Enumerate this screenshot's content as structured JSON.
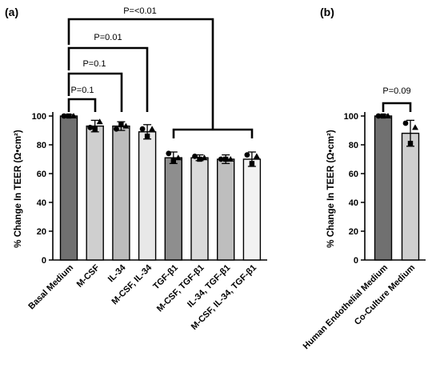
{
  "chart_data": [
    {
      "type": "bar",
      "panel_label": "(a)",
      "ylabel": "% Change In TEER (Ω•cm²)",
      "ylim": [
        0,
        100
      ],
      "yticks": [
        "0",
        "20",
        "40",
        "60",
        "80",
        "100"
      ],
      "categories": [
        "Basal Medium",
        "M-CSF",
        "IL-34",
        "M-CSF, IL-34",
        "TGF-β1",
        "M-CSF, TGF-β1",
        "IL-34, TGF-β1",
        "M-CSF, IL-34, TGF-β1"
      ],
      "values": [
        100,
        93,
        93,
        89,
        71,
        71,
        70,
        70
      ],
      "errors": [
        1,
        4,
        3,
        5,
        4,
        2,
        3,
        5
      ],
      "bar_colors": [
        "#707070",
        "#cfcfcf",
        "#bcbcbc",
        "#e8e8e8",
        "#8e8e8e",
        "#dadada",
        "#bebebe",
        "#f2f2f2"
      ],
      "points": [
        [
          {
            "y": 100,
            "m": "circle"
          },
          {
            "y": 100,
            "m": "square"
          },
          {
            "y": 100,
            "m": "triangle"
          }
        ],
        [
          {
            "y": 92,
            "m": "circle"
          },
          {
            "y": 91,
            "m": "square"
          },
          {
            "y": 96,
            "m": "triangle"
          }
        ],
        [
          {
            "y": 91,
            "m": "circle"
          },
          {
            "y": 94,
            "m": "square"
          },
          {
            "y": 93,
            "m": "triangle"
          }
        ],
        [
          {
            "y": 91,
            "m": "circle"
          },
          {
            "y": 86,
            "m": "square"
          },
          {
            "y": 91,
            "m": "triangle"
          }
        ],
        [
          {
            "y": 74,
            "m": "circle"
          },
          {
            "y": 69,
            "m": "square"
          },
          {
            "y": 71,
            "m": "triangle"
          }
        ],
        [
          {
            "y": 72,
            "m": "circle"
          },
          {
            "y": 70,
            "m": "square"
          },
          {
            "y": 71,
            "m": "triangle"
          }
        ],
        [
          {
            "y": 70,
            "m": "circle"
          },
          {
            "y": 70,
            "m": "square"
          },
          {
            "y": 70,
            "m": "triangle"
          }
        ],
        [
          {
            "y": 73,
            "m": "circle"
          },
          {
            "y": 67,
            "m": "square"
          },
          {
            "y": 72,
            "m": "triangle"
          }
        ]
      ],
      "annotations": [
        "P=0.1",
        "P=0.1",
        "P=0.01",
        "P=<0.01"
      ]
    },
    {
      "type": "bar",
      "panel_label": "(b)",
      "ylabel": "% Change In TEER (Ω•cm²)",
      "ylim": [
        0,
        100
      ],
      "yticks": [
        "0",
        "20",
        "40",
        "60",
        "80",
        "100"
      ],
      "categories": [
        "Human Endothelial Medium",
        "Co-Culture Medium"
      ],
      "values": [
        100,
        88
      ],
      "errors": [
        1,
        9
      ],
      "bar_colors": [
        "#707070",
        "#cfcfcf"
      ],
      "points": [
        [
          {
            "y": 100,
            "m": "circle"
          },
          {
            "y": 100,
            "m": "square"
          },
          {
            "y": 100,
            "m": "triangle"
          }
        ],
        [
          {
            "y": 95,
            "m": "circle"
          },
          {
            "y": 81,
            "m": "square"
          },
          {
            "y": 92,
            "m": "triangle"
          }
        ]
      ],
      "annotations": [
        "P=0.09"
      ]
    }
  ]
}
